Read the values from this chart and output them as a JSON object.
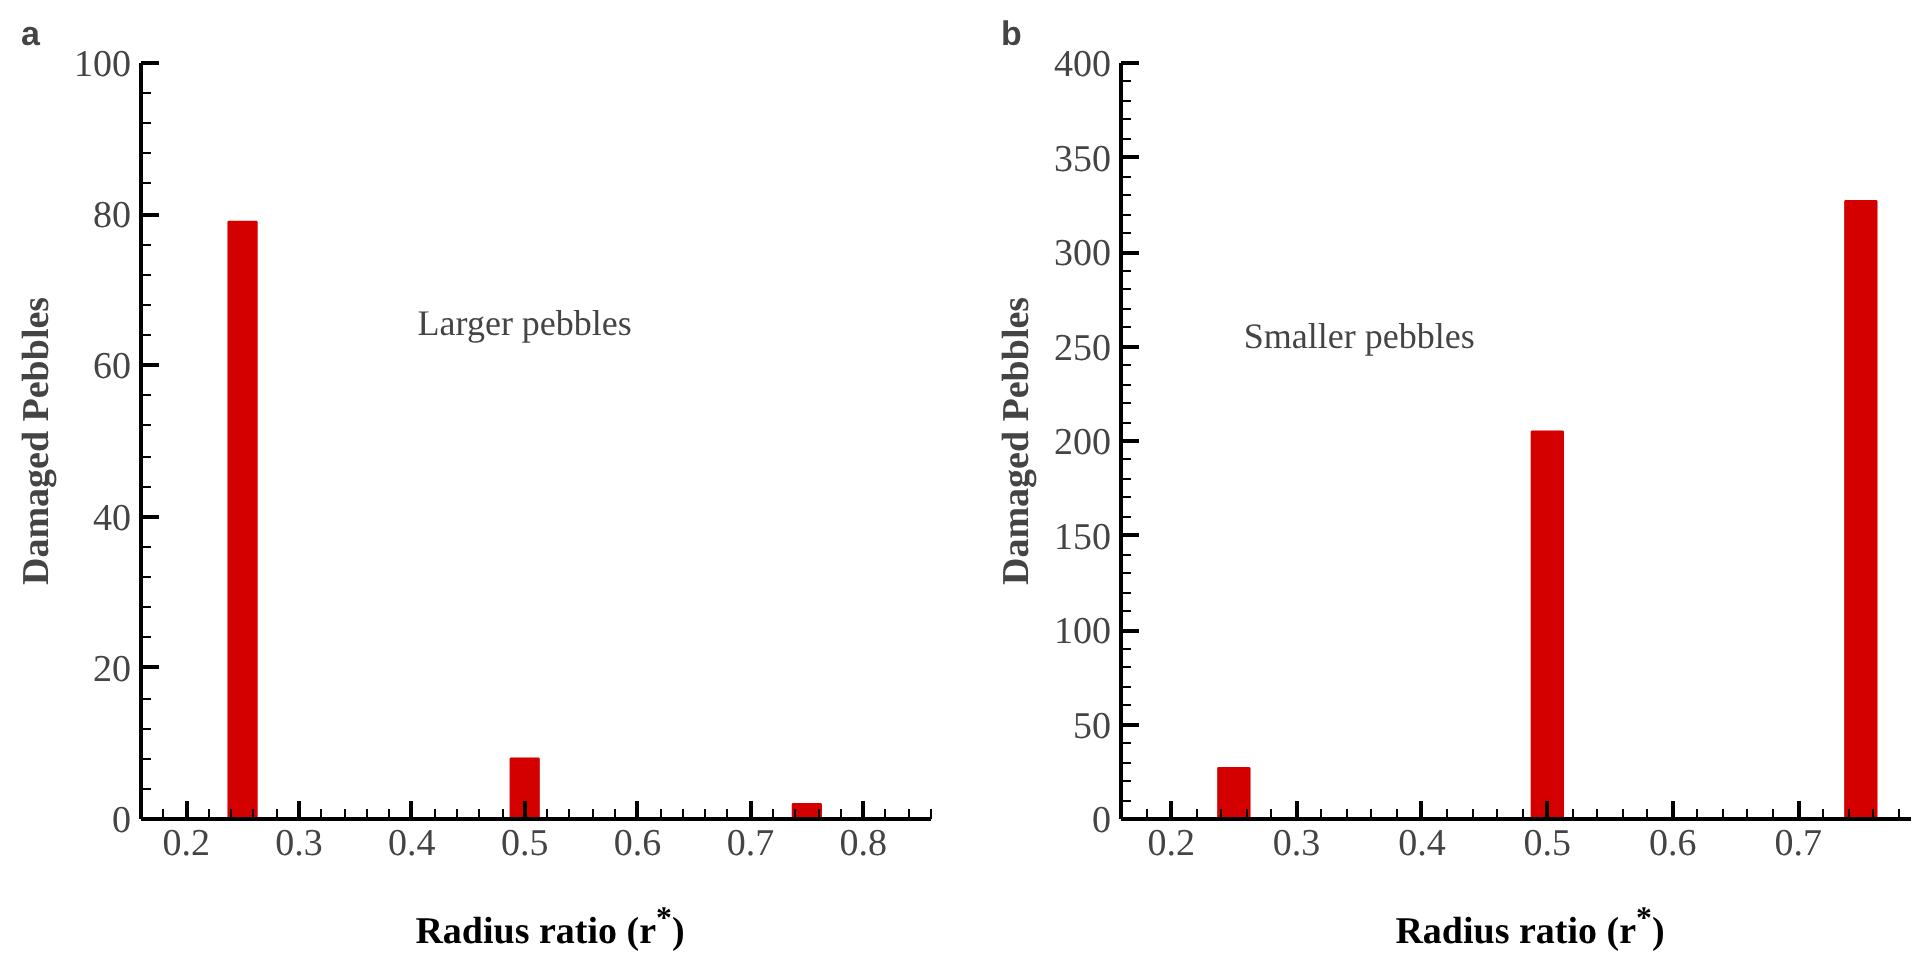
{
  "chart_data": [
    {
      "type": "bar",
      "title": "a",
      "xlabel": "Radius ratio (r$^{*}$)",
      "ylabel": "Damaged Pebbles",
      "x": [
        0.25,
        0.5,
        0.75
      ],
      "values": [
        79,
        8,
        2
      ],
      "color": "#d40000",
      "xlim": [
        0.16,
        0.86
      ],
      "xticks": [
        0.2,
        0.3,
        0.4,
        0.5,
        0.6,
        0.7,
        0.8
      ],
      "ylim": [
        0,
        100
      ],
      "yticks": [
        0,
        20,
        40,
        60,
        80,
        100
      ],
      "grid": false,
      "annotations": [
        "Larger pebbles"
      ]
    },
    {
      "type": "bar",
      "title": "b",
      "xlabel": "Radius ratio (r$^{*}$)",
      "ylabel": "Damaged Pebbles",
      "x": [
        0.25,
        0.5,
        0.75
      ],
      "values": [
        27,
        205,
        327
      ],
      "color": "#d40000",
      "xlim": [
        0.16,
        0.79
      ],
      "xticks": [
        0.2,
        0.3,
        0.4,
        0.5,
        0.6,
        0.7
      ],
      "ylim": [
        0,
        400
      ],
      "yticks": [
        0,
        50,
        100,
        150,
        200,
        250,
        300,
        350,
        400
      ],
      "grid": false,
      "annotations": [
        "Smaller pebbles"
      ]
    }
  ]
}
